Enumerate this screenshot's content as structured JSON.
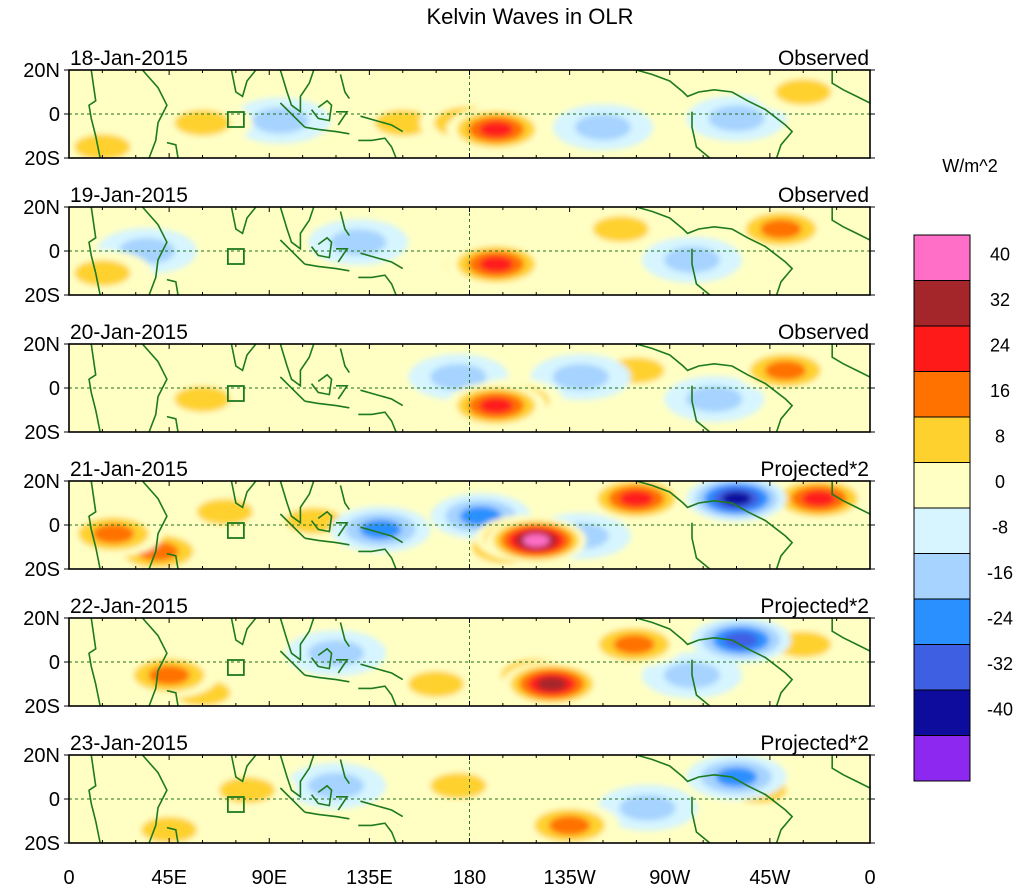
{
  "chart_data": {
    "type": "heatmap",
    "title": "Kelvin Waves in OLR",
    "units": "W/m^2",
    "lat_ticks": [
      "20N",
      "0",
      "20S"
    ],
    "lon_ticks": [
      "0",
      "45E",
      "90E",
      "135E",
      "180",
      "135W",
      "90W",
      "45W",
      "0"
    ],
    "lat_range": [
      -20,
      20
    ],
    "lon_range": [
      0,
      360
    ],
    "colorbar": {
      "labels": [
        "40",
        "32",
        "24",
        "16",
        "8",
        "0",
        "-8",
        "-16",
        "-24",
        "-32",
        "-40"
      ],
      "colors": [
        "#ff6ec7",
        "#a5262a",
        "#ff1a1a",
        "#ff7200",
        "#ffd12e",
        "#ffffc4",
        "#d6f5ff",
        "#a6d3ff",
        "#2a8fff",
        "#3f5fe3",
        "#0d0c9c",
        "#8c28f0"
      ]
    },
    "panels": [
      {
        "date": "18-Jan-2015",
        "kind": "Observed",
        "anomalies": [
          {
            "lon": 180,
            "lat": -4,
            "value": 18
          },
          {
            "lon": 192,
            "lat": -7,
            "value": 26
          },
          {
            "lon": 150,
            "lat": -4,
            "value": 12
          },
          {
            "lon": 240,
            "lat": -6,
            "value": -10
          },
          {
            "lon": 300,
            "lat": -2,
            "value": -14
          },
          {
            "lon": 330,
            "lat": 10,
            "value": 14
          },
          {
            "lon": 95,
            "lat": -3,
            "value": -10
          },
          {
            "lon": 60,
            "lat": -4,
            "value": 10
          },
          {
            "lon": 15,
            "lat": -15,
            "value": 10
          }
        ]
      },
      {
        "date": "19-Jan-2015",
        "kind": "Observed",
        "anomalies": [
          {
            "lon": 185,
            "lat": -6,
            "value": 22
          },
          {
            "lon": 192,
            "lat": -6,
            "value": 28
          },
          {
            "lon": 320,
            "lat": 10,
            "value": 18
          },
          {
            "lon": 248,
            "lat": 10,
            "value": 12
          },
          {
            "lon": 130,
            "lat": 4,
            "value": -12
          },
          {
            "lon": 280,
            "lat": -4,
            "value": -14
          },
          {
            "lon": 35,
            "lat": 0,
            "value": -10
          },
          {
            "lon": 15,
            "lat": -10,
            "value": 10
          }
        ]
      },
      {
        "date": "20-Jan-2015",
        "kind": "Observed",
        "anomalies": [
          {
            "lon": 192,
            "lat": -8,
            "value": 30
          },
          {
            "lon": 200,
            "lat": -6,
            "value": 18
          },
          {
            "lon": 322,
            "lat": 8,
            "value": 16
          },
          {
            "lon": 255,
            "lat": 8,
            "value": 12
          },
          {
            "lon": 230,
            "lat": 5,
            "value": -12
          },
          {
            "lon": 290,
            "lat": -5,
            "value": -12
          },
          {
            "lon": 175,
            "lat": 5,
            "value": -10
          },
          {
            "lon": 60,
            "lat": -5,
            "value": 10
          }
        ]
      },
      {
        "date": "21-Jan-2015",
        "kind": "Projected*2",
        "anomalies": [
          {
            "lon": 210,
            "lat": -7,
            "value": 44
          },
          {
            "lon": 205,
            "lat": -6,
            "value": 36
          },
          {
            "lon": 197,
            "lat": -10,
            "value": 20
          },
          {
            "lon": 255,
            "lat": 12,
            "value": 30
          },
          {
            "lon": 337,
            "lat": 12,
            "value": 24
          },
          {
            "lon": 300,
            "lat": 12,
            "value": -34
          },
          {
            "lon": 185,
            "lat": 4,
            "value": -22
          },
          {
            "lon": 140,
            "lat": -2,
            "value": -16
          },
          {
            "lon": 20,
            "lat": -4,
            "value": 20
          },
          {
            "lon": 40,
            "lat": -12,
            "value": 18
          },
          {
            "lon": 110,
            "lat": 2,
            "value": 12
          },
          {
            "lon": 70,
            "lat": 6,
            "value": 12
          },
          {
            "lon": 230,
            "lat": -5,
            "value": -14
          }
        ]
      },
      {
        "date": "22-Jan-2015",
        "kind": "Projected*2",
        "anomalies": [
          {
            "lon": 217,
            "lat": -10,
            "value": 38
          },
          {
            "lon": 210,
            "lat": -6,
            "value": 20
          },
          {
            "lon": 302,
            "lat": 10,
            "value": -28
          },
          {
            "lon": 254,
            "lat": 8,
            "value": 16
          },
          {
            "lon": 45,
            "lat": -6,
            "value": 20
          },
          {
            "lon": 60,
            "lat": -14,
            "value": 14
          },
          {
            "lon": 120,
            "lat": 4,
            "value": -12
          },
          {
            "lon": 165,
            "lat": -10,
            "value": 12
          },
          {
            "lon": 330,
            "lat": 8,
            "value": 12
          },
          {
            "lon": 280,
            "lat": -6,
            "value": -12
          }
        ]
      },
      {
        "date": "23-Jan-2015",
        "kind": "Projected*2",
        "anomalies": [
          {
            "lon": 225,
            "lat": -12,
            "value": 22
          },
          {
            "lon": 300,
            "lat": 10,
            "value": -20
          },
          {
            "lon": 310,
            "lat": 4,
            "value": 10
          },
          {
            "lon": 45,
            "lat": -14,
            "value": 12
          },
          {
            "lon": 120,
            "lat": 6,
            "value": -10
          },
          {
            "lon": 175,
            "lat": 6,
            "value": 10
          },
          {
            "lon": 80,
            "lat": 4,
            "value": 10
          },
          {
            "lon": 260,
            "lat": -4,
            "value": -10
          }
        ]
      }
    ]
  }
}
